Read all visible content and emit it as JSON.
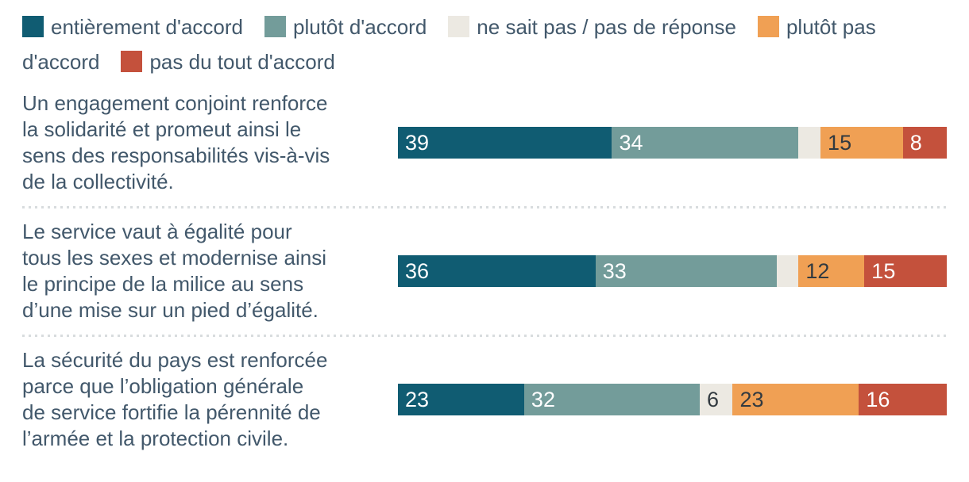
{
  "legend": {
    "items": [
      {
        "label": "entièrement d'accord",
        "color": "#105c72"
      },
      {
        "label": "plutôt d'accord",
        "color": "#739c9a"
      },
      {
        "label": "ne sait pas / pas de réponse",
        "color": "#ece9e2"
      },
      {
        "label": "plutôt pas d'accord",
        "color": "#f0a054"
      },
      {
        "label": "pas du tout d'accord",
        "color": "#c4513c"
      }
    ]
  },
  "chart_data": {
    "type": "bar",
    "orientation": "horizontal",
    "stacked": true,
    "values_unit": "percent",
    "xlim": [
      0,
      100
    ],
    "grid": false,
    "legend_position": "top",
    "categories": [
      "Un engagement conjoint renforce la solidarité et promeut ainsi le sens des responsabilités vis-à-vis de la collectivité.",
      "Le service vaut à égalité pour tous les sexes et modernise ainsi le principe de la milice au sens d’une mise sur un pied d’égalité.",
      "La sécurité du pays est renforcée parce que l’obligation générale de service fortifie la pérennité de l’armée et la protection civile."
    ],
    "series": [
      {
        "name": "entièrement d'accord",
        "color": "#105c72",
        "label_color": "#ffffff",
        "values": [
          39,
          36,
          23
        ],
        "labels": [
          "39",
          "36",
          "23"
        ]
      },
      {
        "name": "plutôt d'accord",
        "color": "#739c9a",
        "label_color": "#ffffff",
        "values": [
          34,
          33,
          32
        ],
        "labels": [
          "34",
          "33",
          "32"
        ]
      },
      {
        "name": "ne sait pas / pas de réponse",
        "color": "#ece9e2",
        "label_color": "#323a40",
        "values": [
          4,
          4,
          6
        ],
        "labels": [
          "",
          "",
          "6"
        ]
      },
      {
        "name": "plutôt pas d'accord",
        "color": "#f0a054",
        "label_color": "#323a40",
        "values": [
          15,
          12,
          23
        ],
        "labels": [
          "15",
          "12",
          "23"
        ]
      },
      {
        "name": "pas du tout d'accord",
        "color": "#c4513c",
        "label_color": "#ffffff",
        "values": [
          8,
          15,
          16
        ],
        "labels": [
          "8",
          "15",
          "16"
        ]
      }
    ]
  },
  "display": {
    "statement_lines": [
      [
        "Un engagement conjoint renforce",
        "la solidarité et promeut ainsi le",
        "sens des responsabilités vis-à-vis",
        "de la collectivité."
      ],
      [
        "Le service vaut à égalité pour",
        "tous les sexes et modernise ainsi",
        "le principe de la milice au sens",
        "d’une mise sur un pied d’égalité."
      ],
      [
        "La sécurité du pays est renforcée",
        "parce que l’obligation générale",
        "de service fortifie la pérennité de",
        "l’armée et la protection civile."
      ]
    ]
  }
}
